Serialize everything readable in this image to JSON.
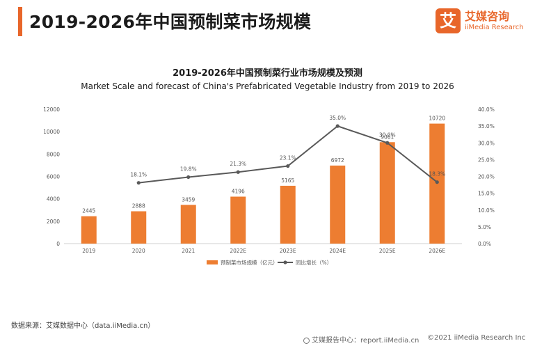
{
  "header": {
    "title": "2019-2026年中国预制菜市场规模",
    "logo": {
      "mark": "艾",
      "name_cn": "艾媒咨询",
      "name_en": "iiMedia Research"
    }
  },
  "chart_data": {
    "type": "bar",
    "title": "2019-2026年中国预制菜行业市场规模及预测",
    "subtitle": "Market Scale and forecast of China's Prefabricated Vegetable Industry from 2019 to 2026",
    "categories": [
      "2019",
      "2020",
      "2021",
      "2022E",
      "2023E",
      "2024E",
      "2025E",
      "2026E"
    ],
    "series": [
      {
        "name": "预制菜市场规模（亿元）",
        "kind": "bar",
        "axis": "left",
        "color": "#ed7d31",
        "values": [
          2445,
          2888,
          3459,
          4196,
          5165,
          6972,
          9061,
          10720
        ],
        "labels": [
          "2445",
          "2888",
          "3459",
          "4196",
          "5165",
          "6972",
          "9061",
          "10720"
        ]
      },
      {
        "name": "同比增长（%）",
        "kind": "line",
        "axis": "right",
        "color": "#595959",
        "values": [
          null,
          18.1,
          19.8,
          21.3,
          23.1,
          35.0,
          30.0,
          18.3
        ],
        "labels": [
          "",
          "18.1%",
          "19.8%",
          "21.3%",
          "23.1%",
          "35.0%",
          "30.0%",
          "18.3%"
        ]
      }
    ],
    "ylim_left": [
      0,
      12000
    ],
    "yticks_left": [
      "0",
      "2000",
      "4000",
      "6000",
      "8000",
      "10000",
      "12000"
    ],
    "ylim_right": [
      0,
      40
    ],
    "yticks_right": [
      "0.0%",
      "5.0%",
      "10.0%",
      "15.0%",
      "20.0%",
      "25.0%",
      "30.0%",
      "35.0%",
      "40.0%"
    ],
    "grid": false,
    "legend_position": "bottom"
  },
  "footer": {
    "source": "数据来源：艾媒数据中心（data.iiMedia.cn）",
    "report": "艾媒报告中心：report.iiMedia.cn",
    "copyright": "©2021  iiMedia Research  Inc"
  }
}
